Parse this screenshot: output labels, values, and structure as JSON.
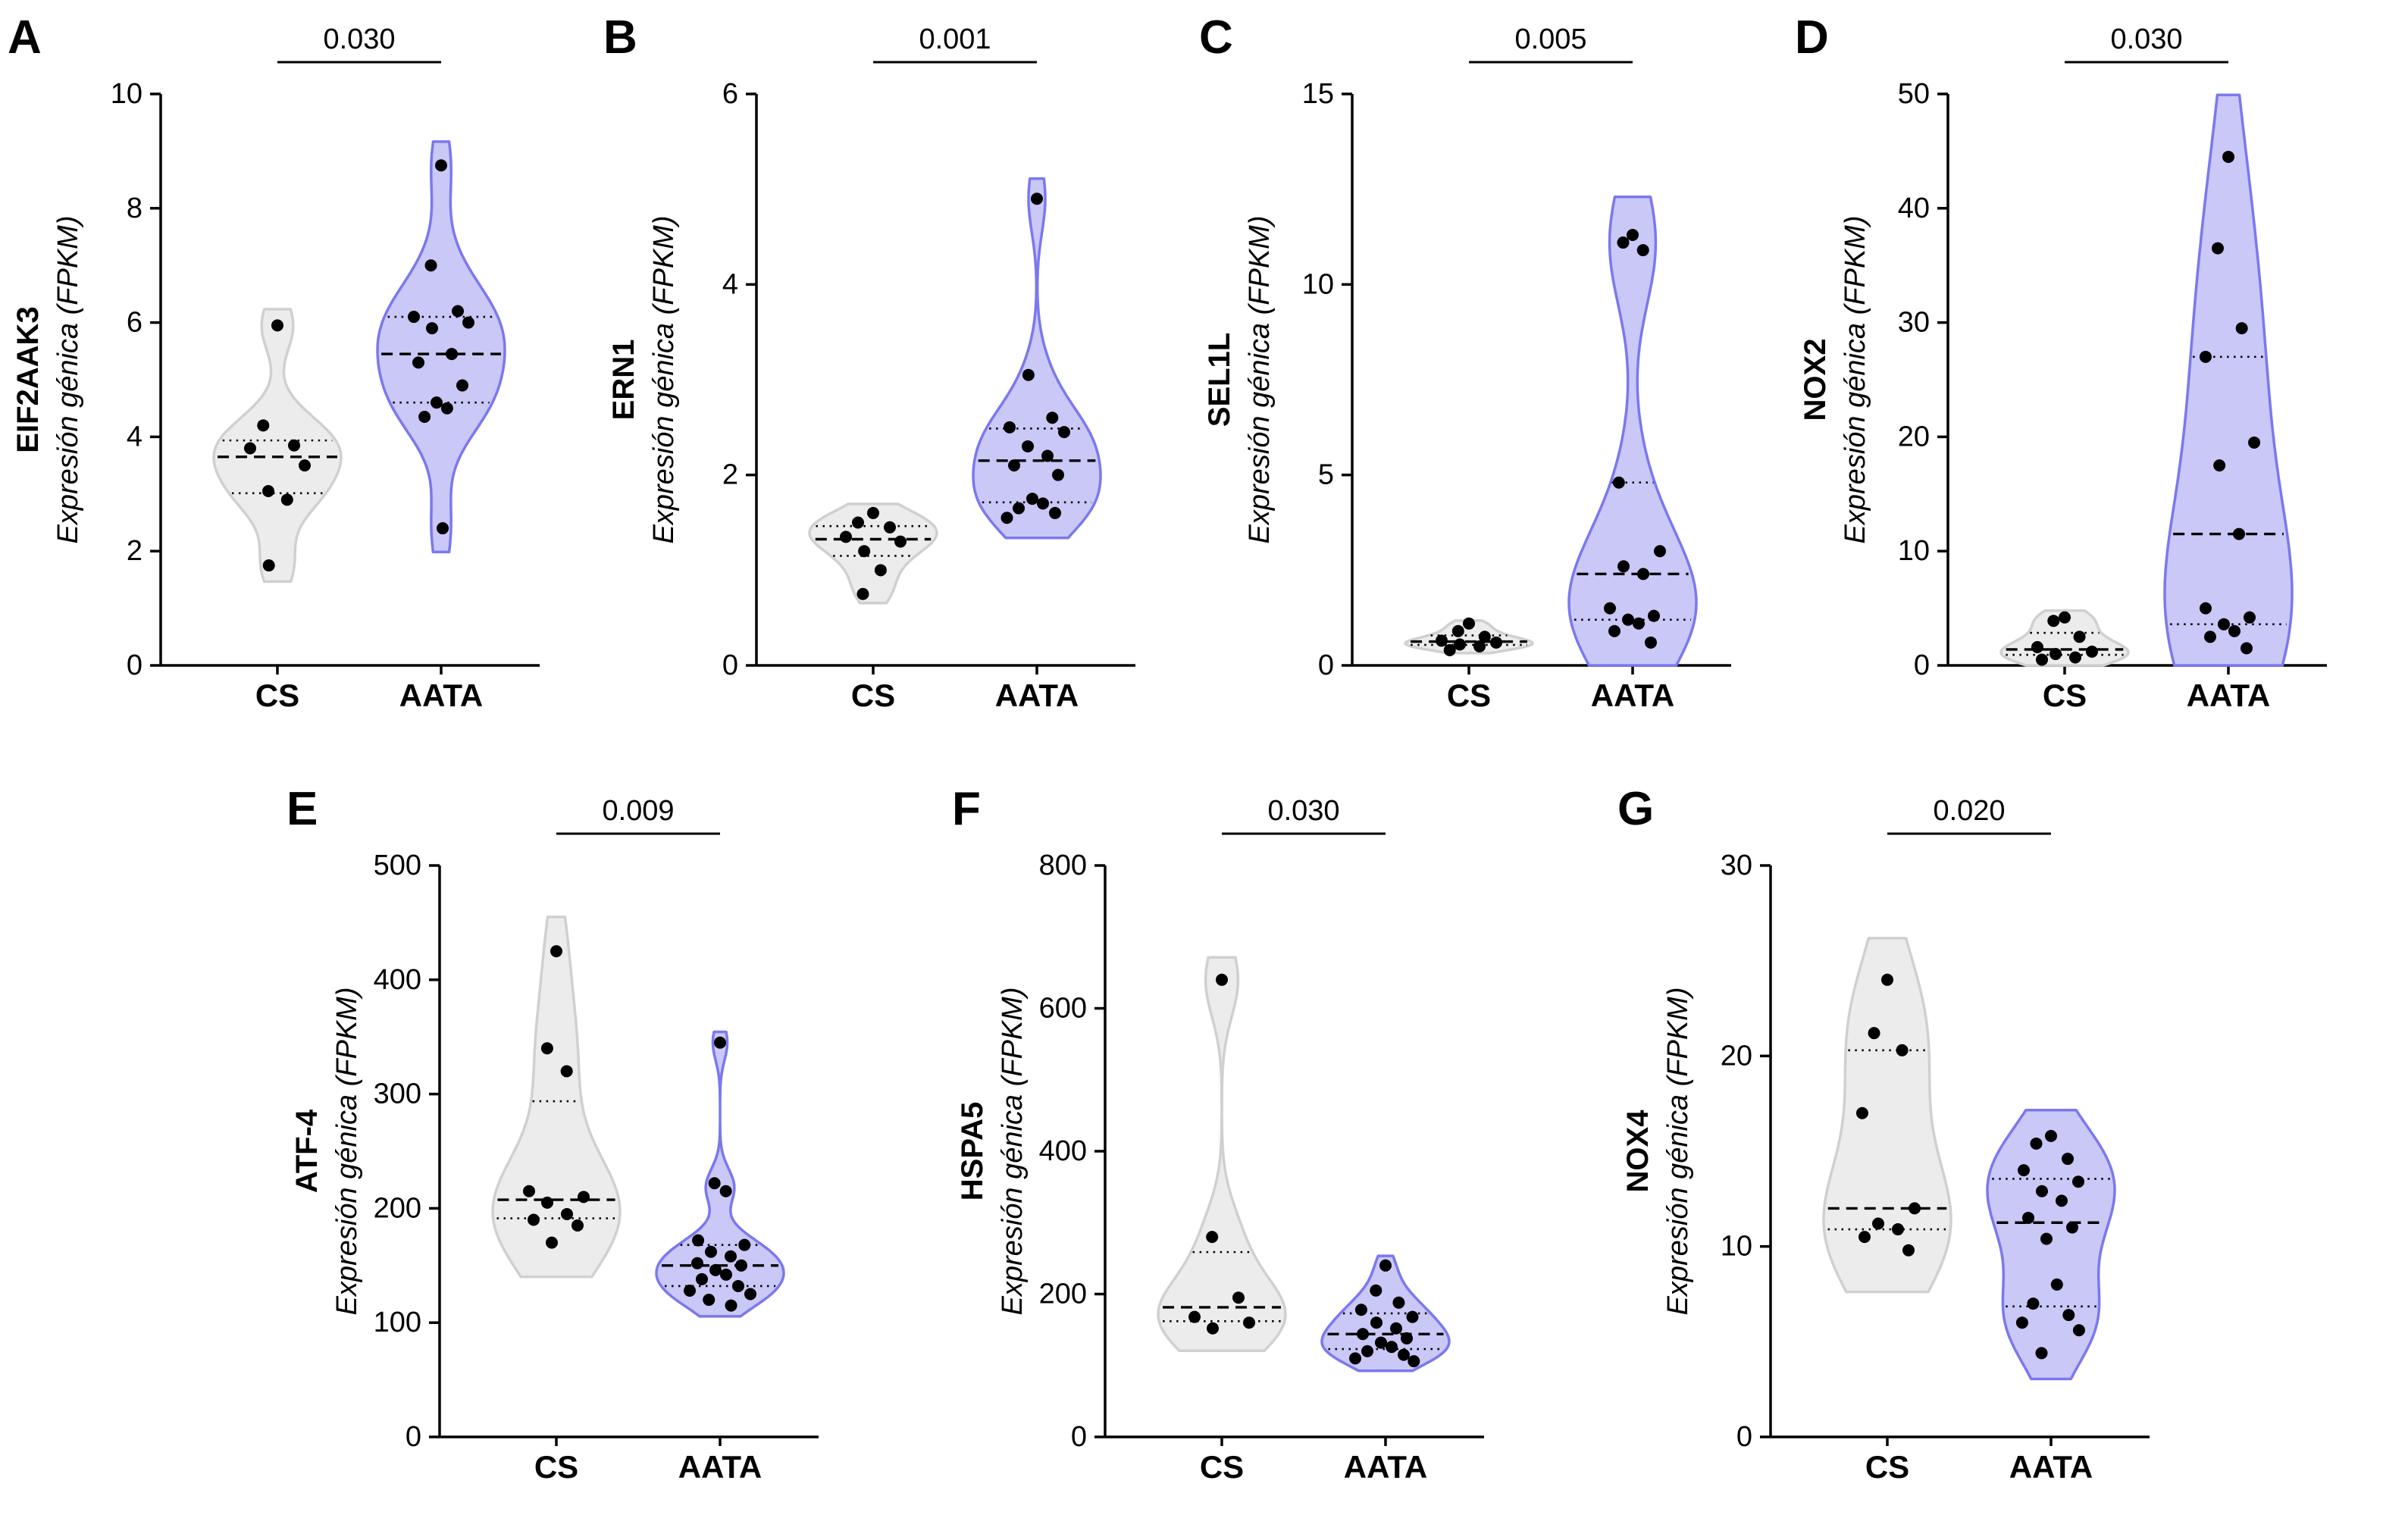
{
  "figure": {
    "background": "#ffffff"
  },
  "style": {
    "cs_fill": "#ececec",
    "cs_stroke": "#d0d0d0",
    "aata_fill": "#c9c8f6",
    "aata_stroke": "#7b78ee",
    "point_color": "#000000",
    "axis_color": "#000000",
    "stat_line_color": "#000000"
  },
  "groups": [
    "CS",
    "AATA"
  ],
  "chart_data": [
    {
      "type": "violin",
      "row": 1,
      "panel_letter": "A",
      "gene": "EIF2AAK3",
      "ylabel": "Expresión génica (FPKM)",
      "p_value": "0.030",
      "ylim": [
        0,
        10
      ],
      "yticks": [
        0,
        2,
        4,
        6,
        8,
        10
      ],
      "categories": [
        "CS",
        "AATA"
      ],
      "series": [
        {
          "name": "CS",
          "color": "cs",
          "points": [
            5.95,
            4.2,
            3.85,
            3.8,
            3.5,
            3.05,
            2.9,
            1.75
          ]
        },
        {
          "name": "AATA",
          "color": "aata",
          "points": [
            8.75,
            7.0,
            6.2,
            6.1,
            6.0,
            5.9,
            5.45,
            5.3,
            4.9,
            4.6,
            4.5,
            4.35,
            2.4
          ]
        }
      ]
    },
    {
      "type": "violin",
      "row": 1,
      "panel_letter": "B",
      "gene": "ERN1",
      "ylabel": "Expresión génica (FPKM)",
      "p_value": "0.001",
      "ylim": [
        0,
        6
      ],
      "yticks": [
        0,
        2,
        4,
        6
      ],
      "categories": [
        "CS",
        "AATA"
      ],
      "series": [
        {
          "name": "CS",
          "color": "cs",
          "points": [
            1.6,
            1.5,
            1.45,
            1.35,
            1.3,
            1.2,
            1.0,
            0.75
          ]
        },
        {
          "name": "AATA",
          "color": "aata",
          "points": [
            4.9,
            3.05,
            2.6,
            2.5,
            2.45,
            2.3,
            2.2,
            2.1,
            2.0,
            1.75,
            1.7,
            1.65,
            1.6,
            1.55
          ]
        }
      ]
    },
    {
      "type": "violin",
      "row": 1,
      "panel_letter": "C",
      "gene": "SEL1L",
      "ylabel": "Expresión génica (FPKM)",
      "p_value": "0.005",
      "ylim": [
        0,
        15
      ],
      "yticks": [
        0,
        5,
        10,
        15
      ],
      "categories": [
        "CS",
        "AATA"
      ],
      "series": [
        {
          "name": "CS",
          "color": "cs",
          "points": [
            1.1,
            0.9,
            0.75,
            0.65,
            0.6,
            0.55,
            0.5,
            0.4
          ]
        },
        {
          "name": "AATA",
          "color": "aata",
          "points": [
            11.3,
            11.1,
            10.9,
            4.8,
            3.0,
            2.6,
            2.4,
            1.5,
            1.3,
            1.2,
            1.1,
            0.9,
            0.6
          ]
        }
      ]
    },
    {
      "type": "violin",
      "row": 1,
      "panel_letter": "D",
      "gene": "NOX2",
      "ylabel": "Expresión génica (FPKM)",
      "p_value": "0.030",
      "ylim": [
        0,
        50
      ],
      "yticks": [
        0,
        10,
        20,
        30,
        40,
        50
      ],
      "categories": [
        "CS",
        "AATA"
      ],
      "series": [
        {
          "name": "CS",
          "color": "cs",
          "points": [
            4.2,
            3.9,
            2.5,
            1.6,
            1.2,
            1.0,
            0.7,
            0.5
          ]
        },
        {
          "name": "AATA",
          "color": "aata",
          "points": [
            44.5,
            36.5,
            29.5,
            27.0,
            19.5,
            17.5,
            11.5,
            5.0,
            4.2,
            3.6,
            3.0,
            2.5,
            1.5
          ]
        }
      ]
    },
    {
      "type": "violin",
      "row": 2,
      "panel_letter": "E",
      "gene": "ATF-4",
      "ylabel": "Expresión génica (FPKM)",
      "p_value": "0.009",
      "ylim": [
        0,
        500
      ],
      "yticks": [
        0,
        100,
        200,
        300,
        400,
        500
      ],
      "categories": [
        "CS",
        "AATA"
      ],
      "series": [
        {
          "name": "CS",
          "color": "cs",
          "points": [
            425,
            340,
            320,
            215,
            210,
            205,
            195,
            190,
            185,
            170
          ]
        },
        {
          "name": "AATA",
          "color": "aata",
          "points": [
            345,
            222,
            215,
            172,
            168,
            162,
            158,
            152,
            150,
            146,
            142,
            138,
            132,
            128,
            125,
            120,
            115
          ]
        }
      ]
    },
    {
      "type": "violin",
      "row": 2,
      "panel_letter": "F",
      "gene": "HSPA5",
      "ylabel": "Expresión génica (FPKM)",
      "p_value": "0.030",
      "ylim": [
        0,
        800
      ],
      "yticks": [
        0,
        200,
        400,
        600,
        800
      ],
      "categories": [
        "CS",
        "AATA"
      ],
      "series": [
        {
          "name": "CS",
          "color": "cs",
          "points": [
            640,
            280,
            195,
            168,
            160,
            152
          ]
        },
        {
          "name": "AATA",
          "color": "aata",
          "points": [
            240,
            205,
            188,
            178,
            168,
            160,
            152,
            144,
            138,
            132,
            126,
            120,
            115,
            110,
            106
          ]
        }
      ]
    },
    {
      "type": "violin",
      "row": 2,
      "panel_letter": "G",
      "gene": "NOX4",
      "ylabel": "Expresión génica (FPKM)",
      "p_value": "0.020",
      "ylim": [
        0,
        30
      ],
      "yticks": [
        0,
        10,
        20,
        30
      ],
      "categories": [
        "CS",
        "AATA"
      ],
      "series": [
        {
          "name": "CS",
          "color": "cs",
          "points": [
            24,
            21.2,
            20.3,
            17,
            12,
            11.2,
            10.9,
            10.5,
            9.8
          ]
        },
        {
          "name": "AATA",
          "color": "aata",
          "points": [
            15.8,
            15.4,
            14.6,
            14.0,
            13.4,
            12.9,
            12.4,
            11.5,
            11.0,
            10.4,
            8.0,
            7.0,
            6.4,
            6.0,
            5.6,
            4.4
          ]
        }
      ]
    }
  ]
}
